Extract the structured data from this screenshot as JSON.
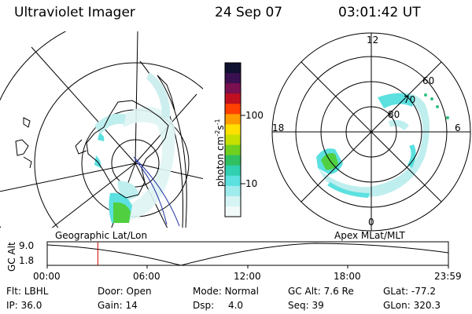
{
  "header": {
    "instrument": "Ultraviolet Imager",
    "date": "24 Sep 07",
    "time": "03:01:42 UT"
  },
  "colorbar": {
    "unit_label": "photon cm",
    "unit_exp1": "-2",
    "unit_s": "s",
    "unit_exp2": "-1",
    "ticks": [
      "100",
      "10"
    ],
    "colors": [
      "#101030",
      "#3a1050",
      "#7a1050",
      "#c01020",
      "#ff4000",
      "#ff9c00",
      "#ffe000",
      "#c8e000",
      "#70d020",
      "#30c060",
      "#30d0b0",
      "#5ce0e0",
      "#a0ecec",
      "#d6f4f4",
      "#f2fafa"
    ]
  },
  "left_map": {
    "label": "Geographic Lat/Lon"
  },
  "right_map": {
    "label": "Apex MLat/MLT",
    "mlt_labels": {
      "top": "12",
      "right": "6",
      "bottom": "0",
      "left": "18"
    },
    "lat_labels": [
      "60",
      "70",
      "80"
    ]
  },
  "timeline": {
    "ylabel": "GC Alt",
    "y_ticks": [
      "9.0",
      "1.8"
    ],
    "x_ticks": [
      "00:00",
      "06:00",
      "12:00",
      "18:00",
      "23:59"
    ],
    "current_time_fraction": 0.1262
  },
  "info": {
    "row1": [
      {
        "label": "Flt:",
        "value": "LBHL"
      },
      {
        "label": "Door:",
        "value": "Open"
      },
      {
        "label": "Mode:",
        "value": "Normal"
      },
      {
        "label": "GC Alt:",
        "value": "7.6 Re"
      },
      {
        "label": "GLat:",
        "value": "-77.2"
      }
    ],
    "row2": [
      {
        "label": "IP:",
        "value": "36.0"
      },
      {
        "label": "Gain:",
        "value": "14"
      },
      {
        "label": "Dsp:",
        "value": "4.0"
      },
      {
        "label": "Seq:",
        "value": "39"
      },
      {
        "label": "GLon:",
        "value": "320.3"
      }
    ]
  },
  "colors": {
    "aurora_dim": "#bfeeee",
    "aurora_mid": "#5ce0e0",
    "aurora_bright": "#50d040",
    "timeline_marker": "#d00000",
    "terminator": "#2030a0"
  }
}
